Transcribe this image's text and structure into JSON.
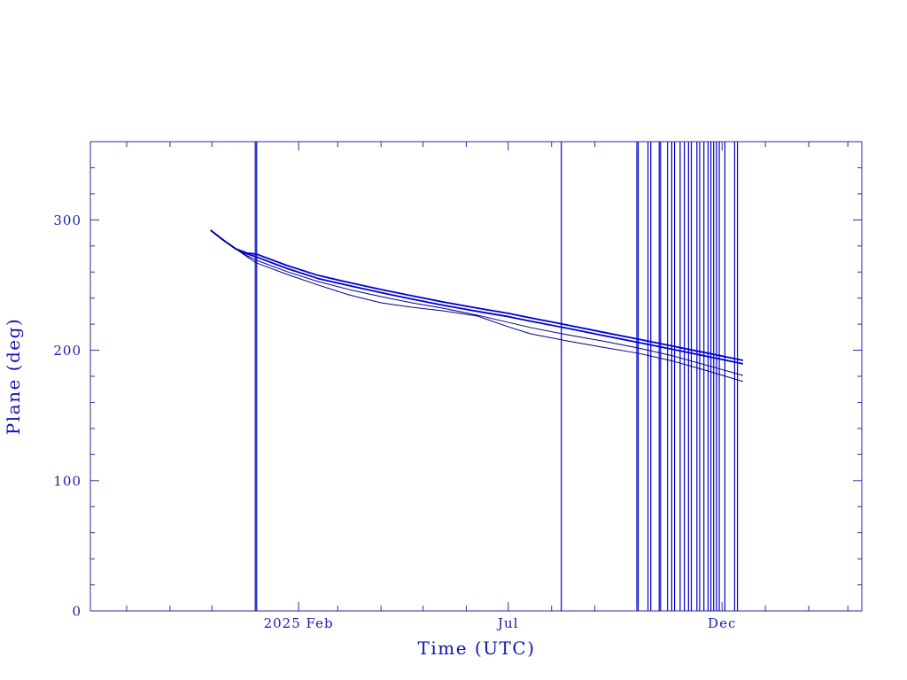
{
  "chart_data": {
    "type": "line",
    "xlabel": "Time (UTC)",
    "ylabel": "Plane (deg)",
    "x_scale": "time",
    "xlim": [
      "2024-09-05",
      "2026-03-11"
    ],
    "ylim": [
      0,
      360
    ],
    "y_ticks": [
      0,
      100,
      200,
      300
    ],
    "y_minor_step": 20,
    "x_ticks": [
      {
        "date": "2025-02-01",
        "label": "2025 Feb"
      },
      {
        "date": "2025-07-01",
        "label": "Jul"
      },
      {
        "date": "2025-12-01",
        "label": "Dec"
      }
    ],
    "x_minor_step_months": 1,
    "grid": false,
    "x": [
      "2024-11-30",
      "2024-12-09",
      "2024-12-18",
      "2024-12-26",
      "2025-01-02",
      "2025-01-24",
      "2025-02-15",
      "2025-03-09",
      "2025-04-01",
      "2025-04-23",
      "2025-05-15",
      "2025-06-09",
      "2025-07-01",
      "2025-07-17",
      "2025-08-12",
      "2025-09-06",
      "2025-10-02",
      "2025-10-27",
      "2025-11-21",
      "2025-12-16"
    ],
    "series": [
      {
        "color": "#0000d0",
        "values": [
          292.1,
          284.6,
          277.8,
          274.6,
          273.7,
          264.9,
          257.4,
          252.0,
          246.6,
          241.8,
          237.1,
          232.3,
          228.3,
          224.8,
          219.4,
          214.0,
          208.5,
          203.1,
          197.7,
          192.2
        ]
      },
      {
        "color": "#0000d0",
        "values": [
          292.1,
          284.6,
          277.8,
          274.0,
          271.5,
          262.6,
          255.0,
          249.6,
          244.2,
          239.3,
          234.6,
          229.8,
          225.8,
          222.3,
          216.9,
          211.5,
          206.0,
          200.6,
          195.1,
          189.6
        ]
      },
      {
        "color": "#00008a",
        "values": [
          292.1,
          284.6,
          277.8,
          272.6,
          269.0,
          260.2,
          252.7,
          246.6,
          241.1,
          236.4,
          232.3,
          226.9,
          221.4,
          217.4,
          211.9,
          207.2,
          201.7,
          195.6,
          188.2,
          180.7
        ]
      },
      {
        "color": "#00008a",
        "values": [
          292.1,
          284.6,
          277.8,
          271.8,
          266.9,
          258.1,
          250.0,
          242.5,
          236.4,
          233.0,
          230.3,
          226.2,
          218.0,
          212.6,
          207.2,
          202.4,
          197.7,
          191.6,
          184.1,
          176.0
        ]
      }
    ],
    "vertical_lines": {
      "color": "#0000c8",
      "x": [
        "2025-01-01",
        "2025-01-02",
        "2025-08-08",
        "2025-10-01",
        "2025-10-02",
        "2025-10-09",
        "2025-10-11",
        "2025-10-17",
        "2025-10-18",
        "2025-10-23",
        "2025-10-26",
        "2025-10-28",
        "2025-11-01",
        "2025-11-04",
        "2025-11-07",
        "2025-11-09",
        "2025-11-13",
        "2025-11-15",
        "2025-11-18",
        "2025-11-21",
        "2025-11-23",
        "2025-11-25",
        "2025-11-27",
        "2025-11-29",
        "2025-12-03",
        "2025-12-10",
        "2025-12-12"
      ]
    }
  },
  "colors": {
    "background": "#ffffff",
    "frame": "#2b2ba3",
    "tick_labels": "#1c1ca8",
    "axis_labels": "#1212b2"
  }
}
